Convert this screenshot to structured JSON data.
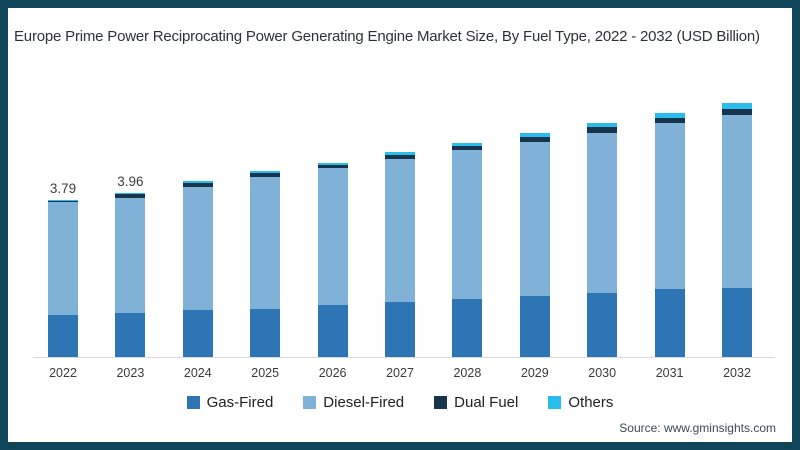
{
  "title": "Europe Prime Power Reciprocating Power Generating Engine Market Size, By Fuel Type, 2022 - 2032 (USD Billion)",
  "source": "Source: www.gminsights.com",
  "colors": {
    "frame_border": "#0f4659",
    "baseline": "#d9d9d9",
    "gas_fired": "#2e75b6",
    "diesel_fired": "#7fb2d6",
    "dual_fuel": "#16354c",
    "others": "#29bdee"
  },
  "chart_data": {
    "type": "bar",
    "stacked": true,
    "title": "Europe Prime Power Reciprocating Power Generating Engine Market Size, By Fuel Type, 2022 - 2032 (USD Billion)",
    "xlabel": "",
    "ylabel": "USD Billion",
    "grid": false,
    "legend_position": "bottom",
    "categories": [
      "2022",
      "2023",
      "2024",
      "2025",
      "2026",
      "2027",
      "2028",
      "2029",
      "2030",
      "2031",
      "2032"
    ],
    "series": [
      {
        "name": "Gas-Fired",
        "color": "#2e75b6",
        "values": [
          1.01,
          1.06,
          1.13,
          1.16,
          1.26,
          1.33,
          1.4,
          1.47,
          1.55,
          1.64,
          1.67
        ]
      },
      {
        "name": "Diesel-Fired",
        "color": "#7fb2d6",
        "values": [
          2.73,
          2.79,
          2.98,
          3.19,
          3.3,
          3.45,
          3.6,
          3.72,
          3.86,
          4.01,
          4.17
        ]
      },
      {
        "name": "Dual Fuel",
        "color": "#16354c",
        "values": [
          0.03,
          0.08,
          0.09,
          0.09,
          0.08,
          0.1,
          0.1,
          0.12,
          0.14,
          0.12,
          0.14
        ]
      },
      {
        "name": "Others",
        "color": "#29bdee",
        "values": [
          0.02,
          0.03,
          0.05,
          0.05,
          0.05,
          0.07,
          0.07,
          0.1,
          0.1,
          0.12,
          0.15
        ]
      }
    ],
    "totals": [
      3.79,
      3.96,
      4.25,
      4.49,
      4.69,
      4.95,
      5.17,
      5.41,
      5.65,
      5.89,
      6.13
    ],
    "data_labels": [
      "3.79",
      "3.96",
      null,
      null,
      null,
      null,
      null,
      null,
      null,
      null,
      null
    ],
    "note_labeled_values_only": "Only 2022 (3.79) and 2023 (3.96) totals are labeled in the chart; other totals estimated from bar heights."
  }
}
